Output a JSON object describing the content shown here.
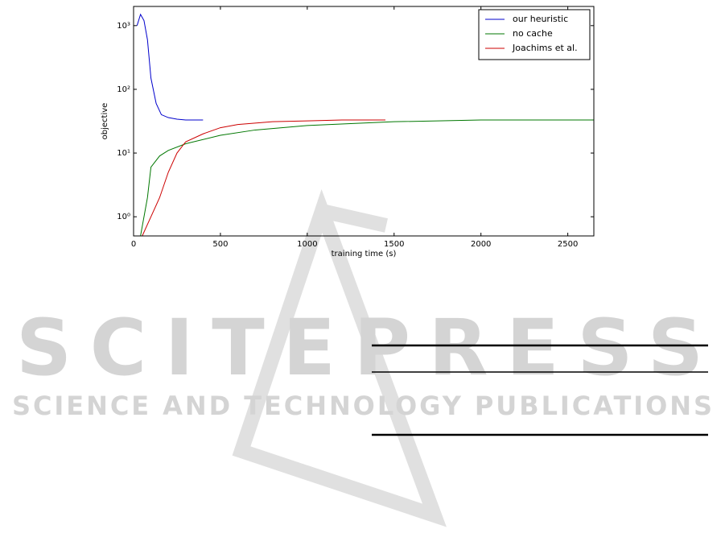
{
  "chart_data": {
    "type": "line",
    "xlabel": "training time (s)",
    "ylabel": "objective",
    "xlim": [
      0,
      2650
    ],
    "xticks": [
      0,
      500,
      1000,
      1500,
      2000,
      2500
    ],
    "ylim": [
      0.5,
      2000
    ],
    "log_y": true,
    "yticks": [
      {
        "value": 1,
        "label": "10⁰"
      },
      {
        "value": 10,
        "label": "10¹"
      },
      {
        "value": 100,
        "label": "10²"
      },
      {
        "value": 1000,
        "label": "10³"
      }
    ],
    "legend": "upper right",
    "grid": false,
    "series": [
      {
        "name": "our heuristic",
        "color": "#0000cc",
        "x": [
          20,
          40,
          60,
          80,
          100,
          130,
          160,
          200,
          250,
          300,
          350,
          400
        ],
        "values": [
          1000,
          1500,
          1200,
          600,
          150,
          60,
          40,
          36,
          34,
          33,
          33,
          33
        ]
      },
      {
        "name": "no cache",
        "color": "#007700",
        "x": [
          40,
          80,
          100,
          150,
          200,
          300,
          500,
          700,
          1000,
          1500,
          2000,
          2650
        ],
        "values": [
          0.5,
          2,
          6,
          9,
          11,
          14,
          19,
          23,
          27,
          31,
          33,
          33
        ]
      },
      {
        "name": "Joachims et al.",
        "color": "#cc0000",
        "x": [
          50,
          100,
          150,
          200,
          250,
          300,
          400,
          500,
          600,
          800,
          1000,
          1200,
          1450
        ],
        "values": [
          0.5,
          1,
          2,
          5,
          10,
          15,
          20,
          25,
          28,
          31,
          32,
          33,
          33
        ]
      }
    ]
  },
  "watermark": {
    "title": "SCITEPRESS",
    "subtitle": "SCIENCE AND TECHNOLOGY PUBLICATIONS"
  }
}
